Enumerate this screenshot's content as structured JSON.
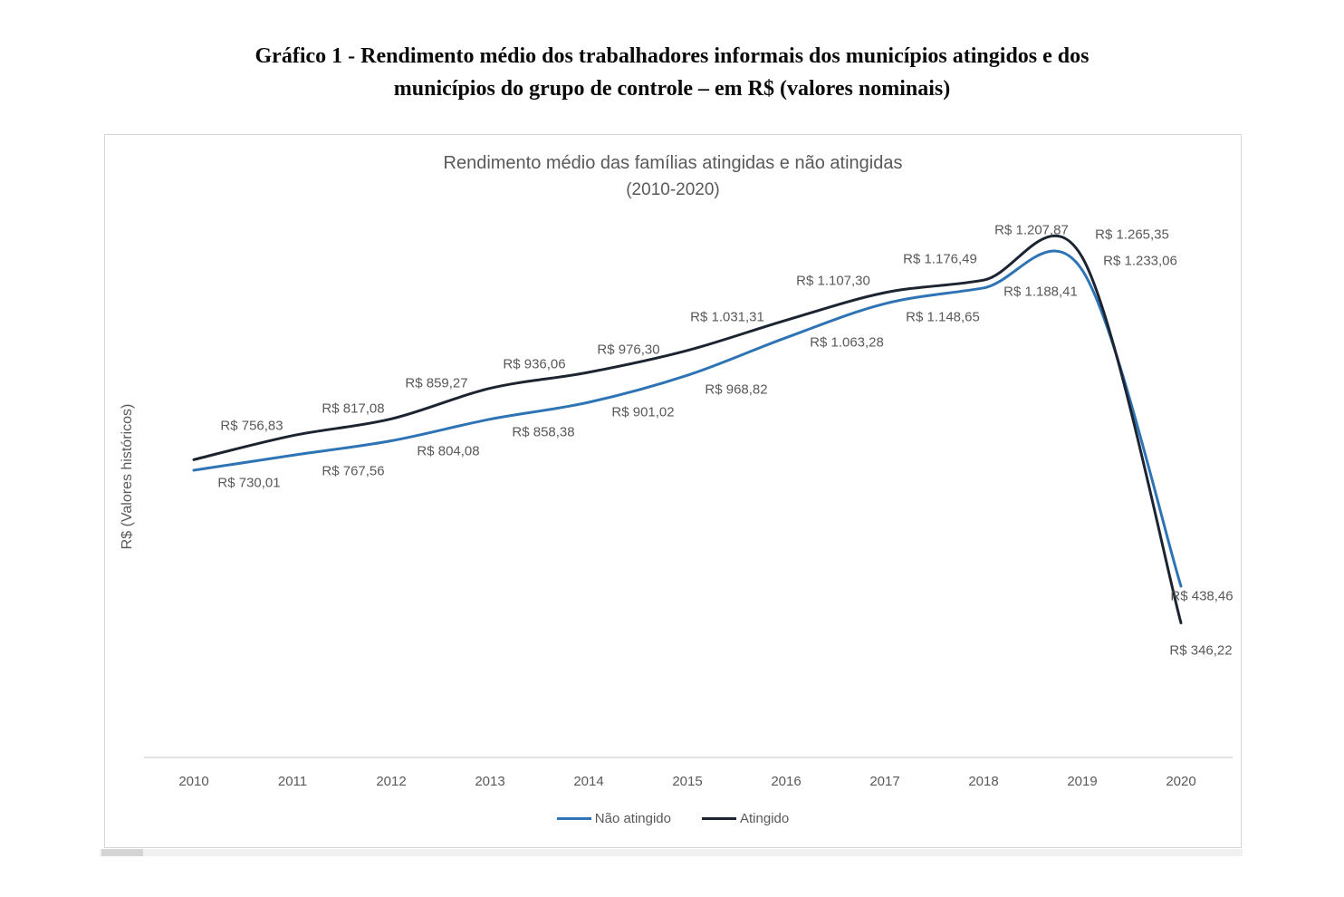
{
  "document": {
    "title_line1": "Gráfico 1 - Rendimento médio dos trabalhadores informais dos municípios atingidos e dos",
    "title_line2": "municípios do grupo de controle  – em R$ (valores nominais)"
  },
  "chart_data": {
    "type": "line",
    "title": "Rendimento médio das famílias atingidas e não atingidas",
    "subtitle": "(2010-2020)",
    "ylabel": "R$ (Valores históricos)",
    "xlabel": "",
    "categories": [
      "2010",
      "2011",
      "2012",
      "2013",
      "2014",
      "2015",
      "2016",
      "2017",
      "2018",
      "2019",
      "2020"
    ],
    "series": [
      {
        "name": "Não atingido",
        "color": "#2e74b5",
        "values": [
          730.01,
          767.56,
          804.08,
          858.38,
          901.02,
          968.82,
          1063.28,
          1148.65,
          1188.41,
          1233.06,
          438.46
        ],
        "labels": [
          "R$ 730,01",
          "R$ 767,56",
          "R$ 804,08",
          "R$ 858,38",
          "R$ 901,02",
          "R$ 968,82",
          "R$ 1.063,28",
          "R$ 1.148,65",
          "R$ 1.188,41",
          "R$ 1.233,06",
          "R$ 438,46"
        ]
      },
      {
        "name": "Atingido",
        "color": "#1b2430",
        "values": [
          756.83,
          817.08,
          859.27,
          936.06,
          976.3,
          1031.31,
          1107.3,
          1176.49,
          1207.87,
          1265.35,
          346.22
        ],
        "labels": [
          "R$ 756,83",
          "R$ 817,08",
          "R$ 859,27",
          "R$ 936,06",
          "R$ 976,30",
          "R$ 1.031,31",
          "R$ 1.107,30",
          "R$ 1.176,49",
          "R$ 1.207,87",
          "R$ 1.265,35",
          "R$ 346,22"
        ]
      }
    ],
    "legend_position": "bottom",
    "grid": false,
    "smooth": true,
    "ylim": [
      0,
      1400
    ]
  }
}
